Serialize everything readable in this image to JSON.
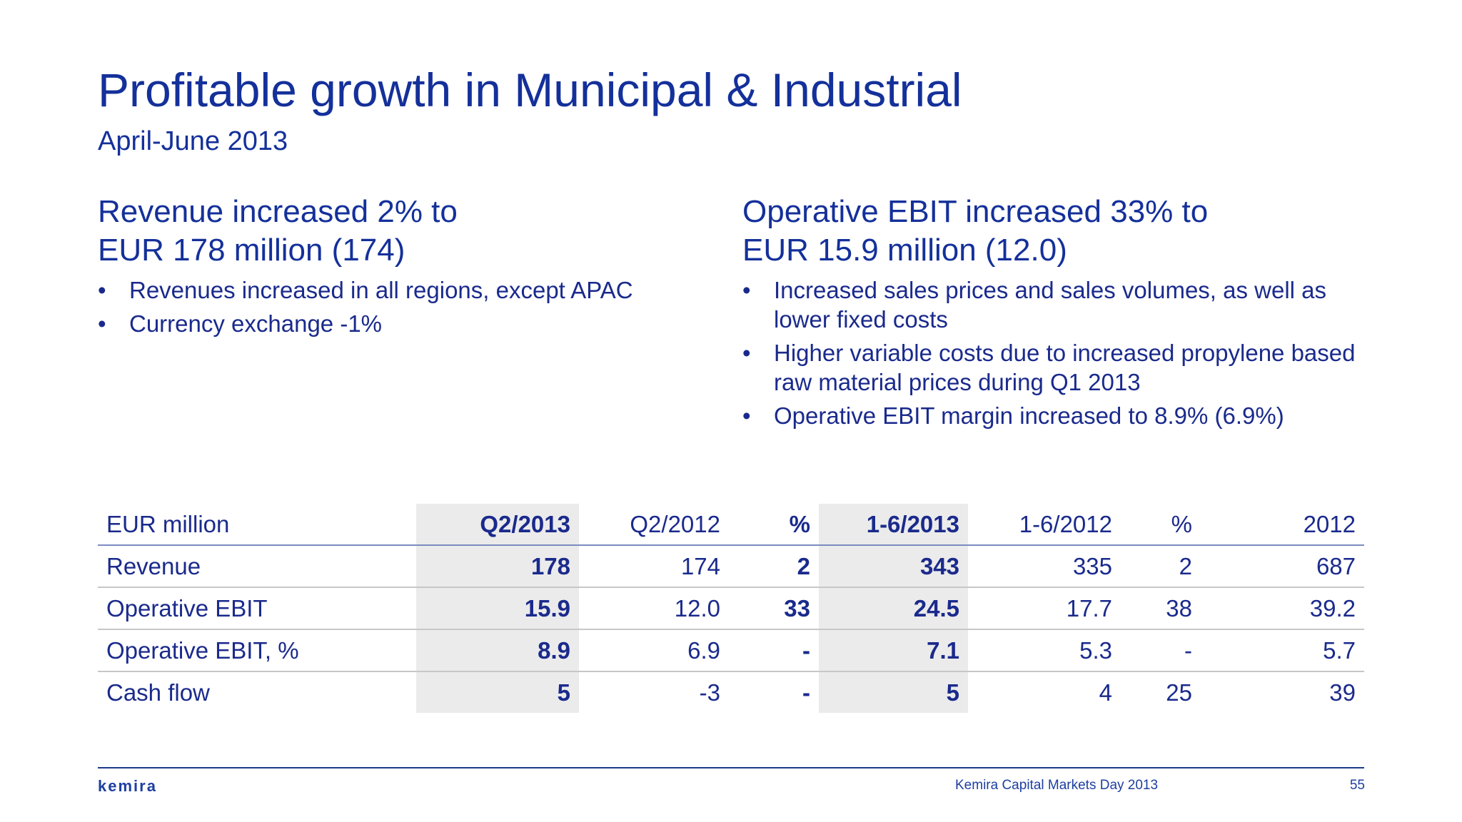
{
  "title": "Profitable growth in Municipal & Industrial",
  "subtitle": "April-June 2013",
  "left": {
    "heading_line1": "Revenue increased 2% to",
    "heading_line2": "EUR 178 million (174)",
    "bullets": [
      "Revenues increased in all regions, except APAC",
      "Currency exchange -1%"
    ]
  },
  "right": {
    "heading_line1": "Operative EBIT increased 33% to",
    "heading_line2": "EUR 15.9 million (12.0)",
    "bullets": [
      "Increased sales prices and sales volumes, as well as lower fixed costs",
      "Higher variable costs due to increased propylene based raw material prices during Q1 2013",
      "Operative EBIT margin increased to 8.9% (6.9%)"
    ]
  },
  "bullet_char": "•",
  "table": {
    "headers": [
      "EUR million",
      "Q2/2013",
      "Q2/2012",
      "%",
      "1-6/2013",
      "1-6/2012",
      "%",
      "2012"
    ],
    "rows": [
      [
        "Revenue",
        "178",
        "174",
        "2",
        "343",
        "335",
        "2",
        "687"
      ],
      [
        "Operative EBIT",
        "15.9",
        "12.0",
        "33",
        "24.5",
        "17.7",
        "38",
        "39.2"
      ],
      [
        "Operative EBIT, %",
        "8.9",
        "6.9",
        "-",
        "7.1",
        "5.3",
        "-",
        "5.7"
      ],
      [
        "Cash flow",
        "5",
        "-3",
        "-",
        "5",
        "4",
        "25",
        "39"
      ]
    ]
  },
  "footer": {
    "logo": "kemira",
    "event": "Kemira Capital Markets Day 2013",
    "page": "55"
  },
  "colors": {
    "primary": "#14309a",
    "text": "#1a2a8c",
    "highlight_column": "#ebebeb",
    "rule": "#1d3a8a"
  }
}
